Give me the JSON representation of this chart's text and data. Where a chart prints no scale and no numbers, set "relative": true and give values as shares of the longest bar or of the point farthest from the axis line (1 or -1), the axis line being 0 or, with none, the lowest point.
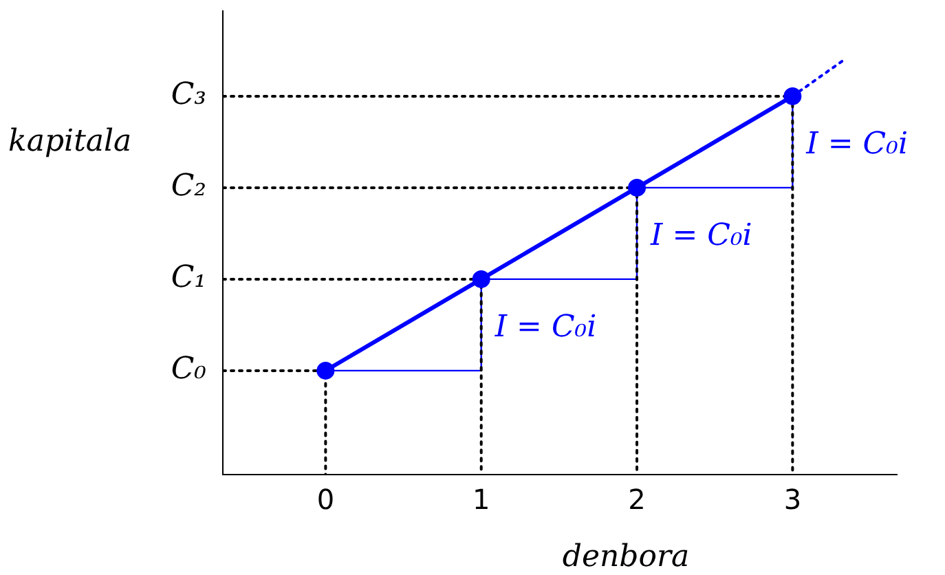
{
  "chart_data": {
    "type": "line",
    "xlabel": "denbora",
    "ylabel": "kapitala",
    "relative": true,
    "xlim": [
      -0.66,
      3.67
    ],
    "xticks": [
      0,
      1,
      2,
      3
    ],
    "grid": false,
    "legend": false,
    "series": [
      {
        "color": "#0000ff",
        "x": [
          0,
          1,
          2,
          3
        ],
        "values": [
          0.25,
          0.47,
          0.69,
          0.91
        ],
        "marker": "circle",
        "line_style": "solid"
      },
      {
        "color": "#0000ff",
        "x": [
          3,
          3.34
        ],
        "values": [
          0.91,
          1
        ],
        "marker": "none",
        "line_style": "dotted"
      },
      {
        "color": "#000000",
        "x": [
          -0.66,
          0,
          0,
          null,
          -0.66,
          1,
          1,
          null,
          -0.66,
          2,
          2,
          null,
          -0.66,
          3,
          3
        ],
        "values": [
          0.25,
          0.25,
          0,
          null,
          0.47,
          0.47,
          0,
          null,
          0.69,
          0.69,
          0,
          null,
          0.91,
          0.91,
          0
        ],
        "marker": "none",
        "line_style": "dotted"
      },
      {
        "color": "#0000ff",
        "x": [
          0,
          1,
          1,
          null,
          1,
          2,
          2,
          null,
          2,
          3,
          3
        ],
        "values": [
          0.25,
          0.25,
          0.47,
          null,
          0.47,
          0.47,
          0.69,
          null,
          0.69,
          0.69,
          0.91
        ],
        "marker": "none",
        "line_style": "solid"
      }
    ],
    "annotations": [
      {
        "text": "C₀",
        "x": -0.66,
        "y": 0.25
      },
      {
        "text": "C₁",
        "x": -0.66,
        "y": 0.47
      },
      {
        "text": "C₂",
        "x": -0.66,
        "y": 0.69
      },
      {
        "text": "C₃",
        "x": -0.66,
        "y": 0.91
      },
      {
        "text": "I = C₀i",
        "x": 1,
        "y": 0.47
      },
      {
        "text": "I = C₀i",
        "x": 2,
        "y": 0.69
      },
      {
        "text": "I = C₀i",
        "x": 3,
        "y": 0.91
      }
    ]
  }
}
